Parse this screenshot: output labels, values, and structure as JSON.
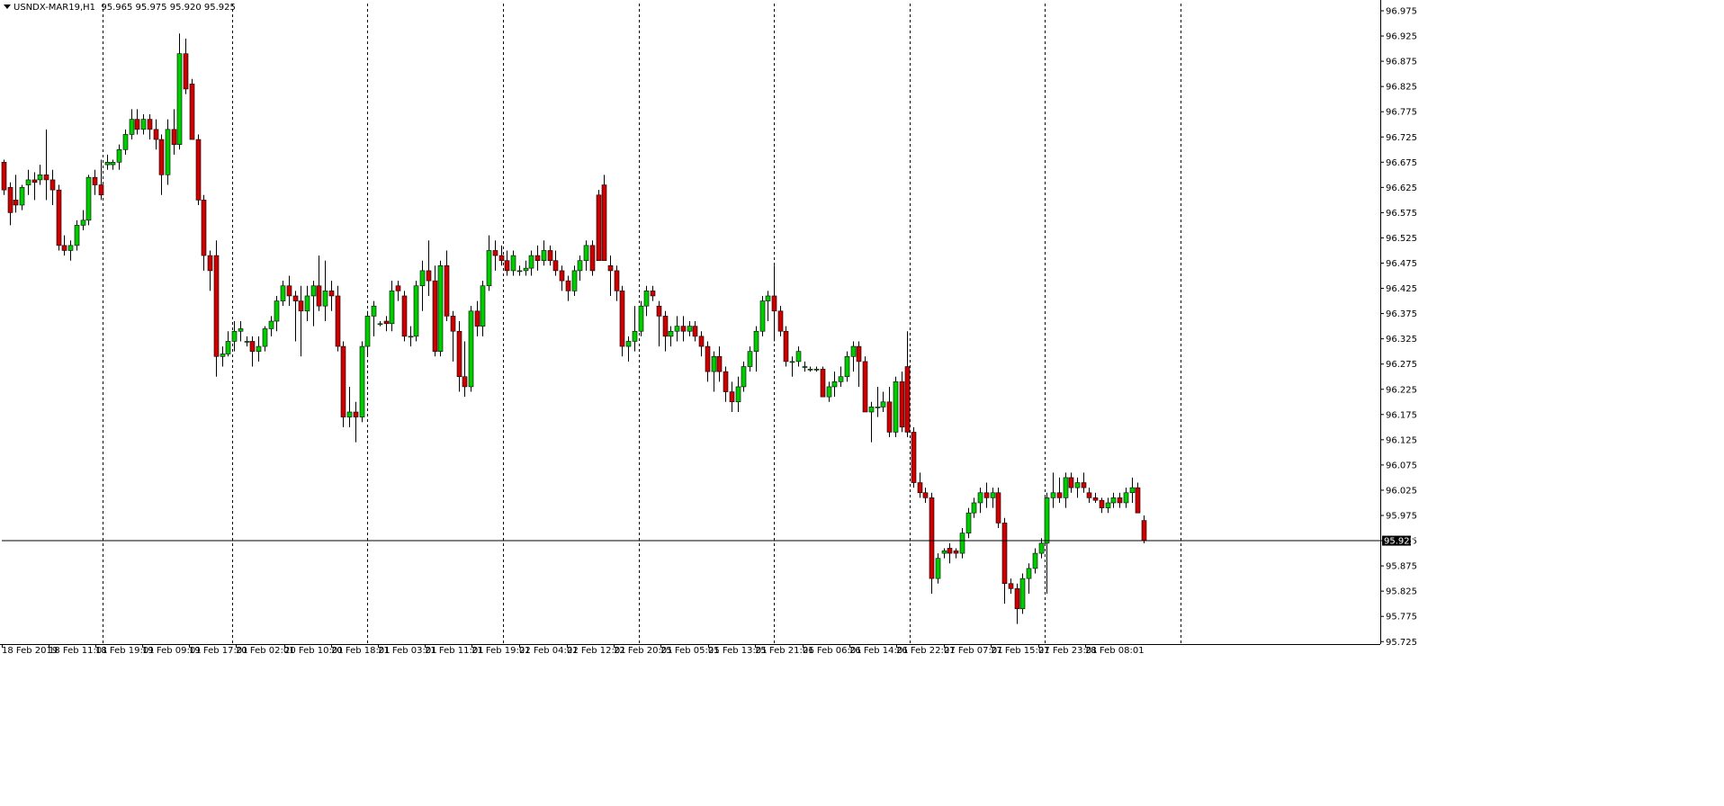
{
  "header": {
    "symbol": "USNDX-MAR19,H1",
    "ohlc": "95.965 95.975 95.920 95.925"
  },
  "colors": {
    "background": "#ffffff",
    "bull": "#00cc00",
    "bear": "#cc0000",
    "wick": "#000000",
    "grid": "#000000",
    "price_line": "#000000",
    "price_tag_bg": "#000000",
    "price_tag_text": "#ffffff"
  },
  "chart_data": {
    "type": "candlestick",
    "ylim": [
      95.725,
      96.975
    ],
    "grid": "vertical dashed",
    "y_ticks": [
      "96.975",
      "96.925",
      "96.875",
      "96.825",
      "96.775",
      "96.725",
      "96.675",
      "96.625",
      "96.575",
      "96.525",
      "96.475",
      "96.425",
      "96.375",
      "96.325",
      "96.275",
      "96.225",
      "96.175",
      "96.125",
      "96.075",
      "96.025",
      "95.975",
      "95.925",
      "95.875",
      "95.825",
      "95.775",
      "95.725"
    ],
    "x_labels": [
      "18 Feb 2019",
      "18 Feb 11:01",
      "18 Feb 19:01",
      "19 Feb 09:01",
      "19 Feb 17:01",
      "20 Feb 02:01",
      "20 Feb 10:01",
      "20 Feb 18:01",
      "21 Feb 03:01",
      "21 Feb 11:01",
      "21 Feb 19:01",
      "22 Feb 04:01",
      "22 Feb 12:01",
      "22 Feb 20:01",
      "25 Feb 05:01",
      "25 Feb 13:01",
      "25 Feb 21:01",
      "26 Feb 06:01",
      "26 Feb 14:01",
      "26 Feb 22:01",
      "27 Feb 07:01",
      "27 Feb 15:01",
      "27 Feb 23:01",
      "28 Feb 08:01"
    ],
    "current_price": "95.925",
    "candles": [
      [
        96.675,
        96.68,
        96.61,
        96.62
      ],
      [
        96.625,
        96.635,
        96.55,
        96.575
      ],
      [
        96.6,
        96.65,
        96.575,
        96.59
      ],
      [
        96.59,
        96.63,
        96.58,
        96.625
      ],
      [
        96.63,
        96.66,
        96.61,
        96.64
      ],
      [
        96.64,
        96.655,
        96.6,
        96.635
      ],
      [
        96.64,
        96.67,
        96.63,
        96.65
      ],
      [
        96.65,
        96.74,
        96.6,
        96.64
      ],
      [
        96.64,
        96.66,
        96.59,
        96.62
      ],
      [
        96.62,
        96.63,
        96.5,
        96.51
      ],
      [
        96.51,
        96.53,
        96.49,
        96.5
      ],
      [
        96.5,
        96.52,
        96.48,
        96.51
      ],
      [
        96.51,
        96.56,
        96.5,
        96.55
      ],
      [
        96.55,
        96.58,
        96.54,
        96.56
      ],
      [
        96.56,
        96.65,
        96.55,
        96.645
      ],
      [
        96.645,
        96.66,
        96.61,
        96.63
      ],
      [
        96.63,
        96.68,
        96.6,
        96.61
      ],
      [
        96.67,
        96.69,
        96.66,
        96.675
      ],
      [
        96.67,
        96.68,
        96.66,
        96.675
      ],
      [
        96.675,
        96.71,
        96.66,
        96.7
      ],
      [
        96.7,
        96.74,
        96.69,
        96.73
      ],
      [
        96.73,
        96.78,
        96.72,
        96.76
      ],
      [
        96.76,
        96.78,
        96.73,
        96.74
      ],
      [
        96.74,
        96.77,
        96.73,
        96.76
      ],
      [
        96.76,
        96.77,
        96.72,
        96.74
      ],
      [
        96.74,
        96.76,
        96.7,
        96.72
      ],
      [
        96.72,
        96.73,
        96.61,
        96.65
      ],
      [
        96.65,
        96.76,
        96.63,
        96.74
      ],
      [
        96.74,
        96.78,
        96.69,
        96.71
      ],
      [
        96.71,
        96.93,
        96.7,
        96.89
      ],
      [
        96.89,
        96.92,
        96.81,
        96.82
      ],
      [
        96.83,
        96.84,
        96.72,
        96.72
      ],
      [
        96.72,
        96.73,
        96.59,
        96.6
      ],
      [
        96.6,
        96.61,
        96.46,
        96.49
      ],
      [
        96.49,
        96.5,
        96.42,
        96.46
      ],
      [
        96.49,
        96.52,
        96.25,
        96.29
      ],
      [
        96.29,
        96.31,
        96.27,
        96.295
      ],
      [
        96.295,
        96.34,
        96.29,
        96.32
      ],
      [
        96.32,
        96.36,
        96.3,
        96.34
      ],
      [
        96.34,
        96.36,
        96.32,
        96.345
      ],
      [
        96.32,
        96.33,
        96.31,
        96.32
      ],
      [
        96.32,
        96.33,
        96.27,
        96.3
      ],
      [
        96.3,
        96.33,
        96.28,
        96.31
      ],
      [
        96.31,
        96.35,
        96.3,
        96.345
      ],
      [
        96.345,
        96.37,
        96.33,
        96.36
      ],
      [
        96.36,
        96.41,
        96.34,
        96.4
      ],
      [
        96.4,
        96.44,
        96.39,
        96.43
      ],
      [
        96.43,
        96.45,
        96.39,
        96.41
      ],
      [
        96.41,
        96.42,
        96.32,
        96.4
      ],
      [
        96.4,
        96.43,
        96.29,
        96.38
      ],
      [
        96.38,
        96.43,
        96.36,
        96.41
      ],
      [
        96.41,
        96.44,
        96.35,
        96.43
      ],
      [
        96.43,
        96.49,
        96.38,
        96.39
      ],
      [
        96.39,
        96.48,
        96.36,
        96.42
      ],
      [
        96.42,
        96.44,
        96.38,
        96.41
      ],
      [
        96.41,
        96.43,
        96.3,
        96.31
      ],
      [
        96.31,
        96.32,
        96.15,
        96.17
      ],
      [
        96.17,
        96.23,
        96.15,
        96.18
      ],
      [
        96.18,
        96.2,
        96.12,
        96.17
      ],
      [
        96.17,
        96.32,
        96.16,
        96.31
      ],
      [
        96.31,
        96.38,
        96.29,
        96.37
      ],
      [
        96.37,
        96.4,
        96.33,
        96.39
      ],
      [
        96.355,
        96.36,
        96.35,
        96.355
      ],
      [
        96.36,
        96.37,
        96.34,
        96.355
      ],
      [
        96.355,
        96.44,
        96.34,
        96.42
      ],
      [
        96.43,
        96.44,
        96.4,
        96.42
      ],
      [
        96.41,
        96.42,
        96.32,
        96.33
      ],
      [
        96.33,
        96.35,
        96.31,
        96.33
      ],
      [
        96.33,
        96.44,
        96.32,
        96.43
      ],
      [
        96.43,
        96.48,
        96.38,
        96.46
      ],
      [
        96.46,
        96.52,
        96.41,
        96.44
      ],
      [
        96.44,
        96.47,
        96.29,
        96.3
      ],
      [
        96.3,
        96.48,
        96.29,
        96.47
      ],
      [
        96.47,
        96.5,
        96.36,
        96.37
      ],
      [
        96.37,
        96.38,
        96.28,
        96.34
      ],
      [
        96.34,
        96.36,
        96.22,
        96.25
      ],
      [
        96.25,
        96.32,
        96.21,
        96.23
      ],
      [
        96.23,
        96.39,
        96.22,
        96.38
      ],
      [
        96.38,
        96.4,
        96.33,
        96.35
      ],
      [
        96.35,
        96.44,
        96.33,
        96.43
      ],
      [
        96.43,
        96.53,
        96.42,
        96.5
      ],
      [
        96.5,
        96.52,
        96.46,
        96.49
      ],
      [
        96.49,
        96.51,
        96.47,
        96.48
      ],
      [
        96.48,
        96.5,
        96.45,
        96.46
      ],
      [
        96.46,
        96.5,
        96.45,
        96.49
      ],
      [
        96.46,
        96.47,
        96.45,
        96.46
      ],
      [
        96.46,
        96.48,
        96.45,
        96.465
      ],
      [
        96.465,
        96.5,
        96.45,
        96.49
      ],
      [
        96.49,
        96.51,
        96.46,
        96.48
      ],
      [
        96.48,
        96.52,
        96.47,
        96.5
      ],
      [
        96.5,
        96.51,
        96.47,
        96.48
      ],
      [
        96.48,
        96.5,
        96.45,
        96.46
      ],
      [
        96.46,
        96.47,
        96.42,
        96.44
      ],
      [
        96.44,
        96.45,
        96.4,
        96.42
      ],
      [
        96.42,
        96.47,
        96.41,
        96.46
      ],
      [
        96.46,
        96.49,
        96.44,
        96.48
      ],
      [
        96.48,
        96.52,
        96.46,
        96.51
      ],
      [
        96.51,
        96.52,
        96.45,
        96.46
      ],
      [
        96.61,
        96.62,
        96.48,
        96.48
      ],
      [
        96.63,
        96.65,
        96.48,
        96.48
      ],
      [
        96.47,
        96.49,
        96.41,
        96.46
      ],
      [
        96.46,
        96.47,
        96.4,
        96.42
      ],
      [
        96.42,
        96.43,
        96.29,
        96.31
      ],
      [
        96.31,
        96.33,
        96.28,
        96.32
      ],
      [
        96.32,
        96.39,
        96.3,
        96.34
      ],
      [
        96.34,
        96.4,
        96.33,
        96.39
      ],
      [
        96.39,
        96.43,
        96.37,
        96.42
      ],
      [
        96.42,
        96.43,
        96.4,
        96.41
      ],
      [
        96.39,
        96.4,
        96.31,
        96.37
      ],
      [
        96.37,
        96.38,
        96.3,
        96.33
      ],
      [
        96.33,
        96.35,
        96.31,
        96.34
      ],
      [
        96.34,
        96.37,
        96.32,
        96.35
      ],
      [
        96.35,
        96.37,
        96.32,
        96.34
      ],
      [
        96.34,
        96.36,
        96.33,
        96.35
      ],
      [
        96.35,
        96.36,
        96.32,
        96.33
      ],
      [
        96.33,
        96.34,
        96.29,
        96.31
      ],
      [
        96.31,
        96.32,
        96.24,
        96.26
      ],
      [
        96.26,
        96.3,
        96.22,
        96.29
      ],
      [
        96.29,
        96.31,
        96.24,
        96.26
      ],
      [
        96.26,
        96.27,
        96.2,
        96.22
      ],
      [
        96.22,
        96.24,
        96.18,
        96.2
      ],
      [
        96.2,
        96.25,
        96.18,
        96.23
      ],
      [
        96.23,
        96.28,
        96.22,
        96.27
      ],
      [
        96.27,
        96.31,
        96.26,
        96.3
      ],
      [
        96.3,
        96.35,
        96.26,
        96.34
      ],
      [
        96.34,
        96.41,
        96.33,
        96.4
      ],
      [
        96.4,
        96.42,
        96.36,
        96.41
      ],
      [
        96.41,
        96.47,
        96.32,
        96.38
      ],
      [
        96.38,
        96.39,
        96.33,
        96.34
      ],
      [
        96.34,
        96.35,
        96.27,
        96.28
      ],
      [
        96.28,
        96.29,
        96.25,
        96.28
      ],
      [
        96.28,
        96.31,
        96.27,
        96.3
      ],
      [
        96.27,
        96.28,
        96.26,
        96.27
      ],
      [
        96.265,
        96.27,
        96.26,
        96.265
      ],
      [
        96.265,
        96.27,
        96.26,
        96.265
      ],
      [
        96.265,
        96.27,
        96.21,
        96.21
      ],
      [
        96.21,
        96.24,
        96.2,
        96.23
      ],
      [
        96.23,
        96.26,
        96.21,
        96.24
      ],
      [
        96.24,
        96.27,
        96.23,
        96.25
      ],
      [
        96.25,
        96.3,
        96.24,
        96.29
      ],
      [
        96.29,
        96.32,
        96.26,
        96.31
      ],
      [
        96.31,
        96.32,
        96.23,
        96.28
      ],
      [
        96.28,
        96.29,
        96.18,
        96.18
      ],
      [
        96.18,
        96.2,
        96.12,
        96.19
      ],
      [
        96.19,
        96.23,
        96.17,
        96.19
      ],
      [
        96.19,
        96.22,
        96.18,
        96.2
      ],
      [
        96.2,
        96.23,
        96.13,
        96.14
      ],
      [
        96.14,
        96.25,
        96.13,
        96.24
      ],
      [
        96.24,
        96.26,
        96.14,
        96.15
      ],
      [
        96.27,
        96.34,
        96.13,
        96.14
      ],
      [
        96.14,
        96.15,
        96.03,
        96.04
      ],
      [
        96.04,
        96.06,
        96.01,
        96.02
      ],
      [
        96.02,
        96.03,
        96.0,
        96.01
      ],
      [
        96.01,
        96.02,
        95.82,
        95.85
      ],
      [
        95.85,
        95.9,
        95.84,
        95.89
      ],
      [
        95.9,
        95.91,
        95.89,
        95.905
      ],
      [
        95.91,
        95.92,
        95.88,
        95.9
      ],
      [
        95.905,
        95.91,
        95.89,
        95.9
      ],
      [
        95.9,
        95.95,
        95.89,
        95.94
      ],
      [
        95.94,
        95.99,
        95.93,
        95.98
      ],
      [
        95.98,
        96.01,
        95.97,
        96.0
      ],
      [
        96.0,
        96.03,
        95.98,
        96.02
      ],
      [
        96.02,
        96.04,
        95.99,
        96.01
      ],
      [
        96.01,
        96.03,
        95.99,
        96.02
      ],
      [
        96.02,
        96.03,
        95.95,
        95.96
      ],
      [
        95.96,
        95.97,
        95.8,
        95.84
      ],
      [
        95.84,
        95.85,
        95.82,
        95.83
      ],
      [
        95.83,
        95.84,
        95.76,
        95.79
      ],
      [
        95.79,
        95.86,
        95.78,
        95.85
      ],
      [
        95.85,
        95.88,
        95.82,
        95.87
      ],
      [
        95.87,
        95.91,
        95.86,
        95.9
      ],
      [
        95.9,
        95.93,
        95.89,
        95.92
      ],
      [
        95.92,
        96.02,
        95.82,
        96.01
      ],
      [
        96.01,
        96.06,
        95.99,
        96.02
      ],
      [
        96.02,
        96.05,
        96.0,
        96.01
      ],
      [
        96.01,
        96.06,
        95.99,
        96.05
      ],
      [
        96.05,
        96.06,
        96.02,
        96.03
      ],
      [
        96.03,
        96.05,
        96.01,
        96.04
      ],
      [
        96.04,
        96.06,
        96.02,
        96.03
      ],
      [
        96.02,
        96.03,
        96.0,
        96.01
      ],
      [
        96.01,
        96.02,
        96.0,
        96.005
      ],
      [
        96.005,
        96.01,
        95.98,
        95.99
      ],
      [
        95.99,
        96.01,
        95.98,
        96.0
      ],
      [
        96.0,
        96.02,
        95.99,
        96.01
      ],
      [
        96.01,
        96.02,
        95.99,
        96.0
      ],
      [
        96.0,
        96.03,
        95.99,
        96.02
      ],
      [
        96.02,
        96.05,
        96.0,
        96.03
      ],
      [
        96.03,
        96.04,
        95.98,
        95.98
      ],
      [
        95.965,
        95.975,
        95.92,
        95.925
      ]
    ]
  }
}
